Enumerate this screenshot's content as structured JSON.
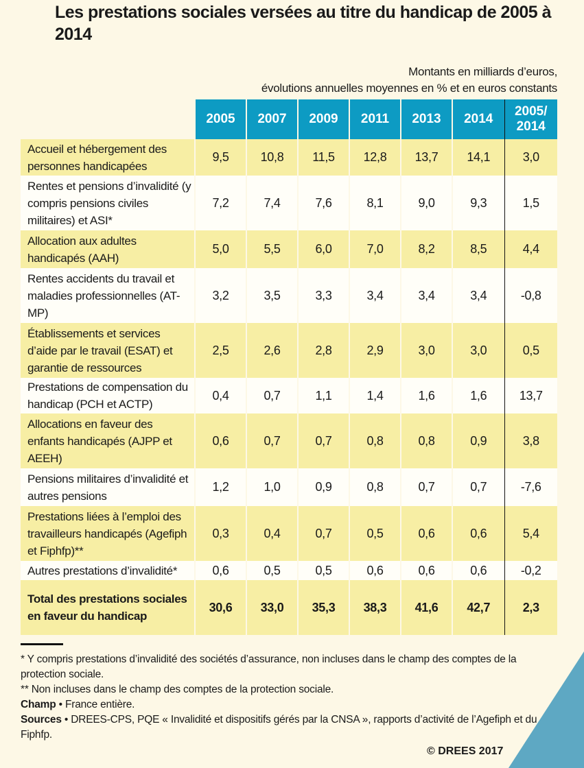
{
  "title": "Les prestations sociales versées au titre du handicap de 2005 à 2014",
  "units": [
    "Montants en milliards d’euros,",
    "évolutions annuelles moyennes en % et en euros constants"
  ],
  "columns": [
    "2005",
    "2007",
    "2009",
    "2011",
    "2013",
    "2014",
    "2005/ 2014"
  ],
  "rows": [
    {
      "label": "Accueil et hébergement des personnes handicapées",
      "values": [
        "9,5",
        "10,8",
        "11,5",
        "12,8",
        "13,7",
        "14,1",
        "3,0"
      ]
    },
    {
      "label": "Rentes et pensions d’invalidité (y compris pensions civiles militaires) et ASI*",
      "values": [
        "7,2",
        "7,4",
        "7,6",
        "8,1",
        "9,0",
        "9,3",
        "1,5"
      ]
    },
    {
      "label": "Allocation aux adultes handicapés (AAH)",
      "values": [
        "5,0",
        "5,5",
        "6,0",
        "7,0",
        "8,2",
        "8,5",
        "4,4"
      ]
    },
    {
      "label": "Rentes accidents du travail et maladies professionnelles (AT-MP)",
      "values": [
        "3,2",
        "3,5",
        "3,3",
        "3,4",
        "3,4",
        "3,4",
        "-0,8"
      ]
    },
    {
      "label": "Établissements et services d’aide par le travail (ESAT) et garantie de ressources",
      "values": [
        "2,5",
        "2,6",
        "2,8",
        "2,9",
        "3,0",
        "3,0",
        "0,5"
      ]
    },
    {
      "label": "Prestations de compensation du handicap (PCH et  ACTP)",
      "values": [
        "0,4",
        "0,7",
        "1,1",
        "1,4",
        "1,6",
        "1,6",
        "13,7"
      ]
    },
    {
      "label": "Allocations en faveur des enfants handicapés (AJPP et AEEH)",
      "values": [
        "0,6",
        "0,7",
        "0,7",
        "0,8",
        "0,8",
        "0,9",
        "3,8"
      ]
    },
    {
      "label": "Pensions militaires d’invalidité et autres pensions",
      "values": [
        "1,2",
        "1,0",
        "0,9",
        "0,8",
        "0,7",
        "0,7",
        "-7,6"
      ]
    },
    {
      "label": "Prestations liées à l’emploi des travailleurs handicapés (Agefiph et Fiphfp)**",
      "values": [
        "0,3",
        "0,4",
        "0,7",
        "0,5",
        "0,6",
        "0,6",
        "5,4"
      ]
    },
    {
      "label": "Autres prestations d’invalidité*",
      "values": [
        "0,6",
        "0,5",
        "0,5",
        "0,6",
        "0,6",
        "0,6",
        "-0,2"
      ]
    },
    {
      "label": "Total des prestations sociales en faveur du handicap",
      "values": [
        "30,6",
        "33,0",
        "35,3",
        "38,3",
        "41,6",
        "42,7",
        "2,3"
      ]
    }
  ],
  "notes": {
    "n1": "* Y compris prestations d’invalidité des sociétés d’assurance, non incluses dans le champ des comptes de la protection sociale.",
    "n2": "** Non incluses dans le champ des comptes de la protection sociale.",
    "champ_label": "Champ",
    "champ": "• France entière.",
    "sources_label": "Sources",
    "sources": "• DREES-CPS, PQE « Invalidité et dispositifs gérés par la CNSA », rapports d’activité de l’Agefiph et du Fiphfp."
  },
  "copyright": "© DREES 2017",
  "colors": {
    "header": "#0d9bc3",
    "highlight_row": "#f7eea4",
    "background": "#fdf8e6",
    "corner": "#5ea8c3"
  }
}
